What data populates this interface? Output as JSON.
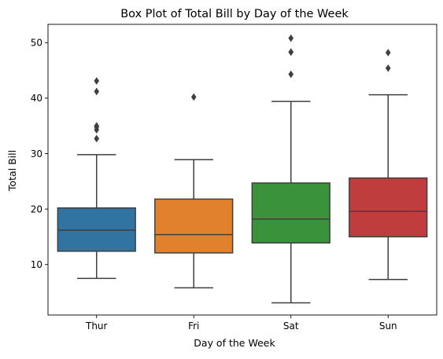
{
  "chart_data": {
    "type": "box",
    "title": "Box Plot of Total Bill by Day of the Week",
    "xlabel": "Day of the Week",
    "ylabel": "Total Bill",
    "categories": [
      "Thur",
      "Fri",
      "Sat",
      "Sun"
    ],
    "yticks": [
      10,
      20,
      30,
      40,
      50
    ],
    "ylim": [
      0.9,
      53.3
    ],
    "grid": false,
    "colors": [
      "#3274a1",
      "#e1812c",
      "#3a923a",
      "#c03d3e"
    ],
    "edge_color": "#3f3f3f",
    "boxes": [
      {
        "category": "Thur",
        "whisker_low": 7.5,
        "q1": 12.4,
        "median": 16.2,
        "q3": 20.2,
        "whisker_high": 29.8,
        "outliers": [
          32.7,
          34.3,
          34.8,
          35.0,
          41.2,
          43.1
        ]
      },
      {
        "category": "Fri",
        "whisker_low": 5.8,
        "q1": 12.1,
        "median": 15.4,
        "q3": 21.8,
        "whisker_high": 28.9,
        "outliers": [
          40.2
        ]
      },
      {
        "category": "Sat",
        "whisker_low": 3.1,
        "q1": 13.9,
        "median": 18.2,
        "q3": 24.7,
        "whisker_high": 39.4,
        "outliers": [
          44.3,
          48.3,
          48.3,
          50.8
        ]
      },
      {
        "category": "Sun",
        "whisker_low": 7.3,
        "q1": 15.0,
        "median": 19.6,
        "q3": 25.6,
        "whisker_high": 40.6,
        "outliers": [
          45.4,
          48.2
        ]
      }
    ]
  }
}
